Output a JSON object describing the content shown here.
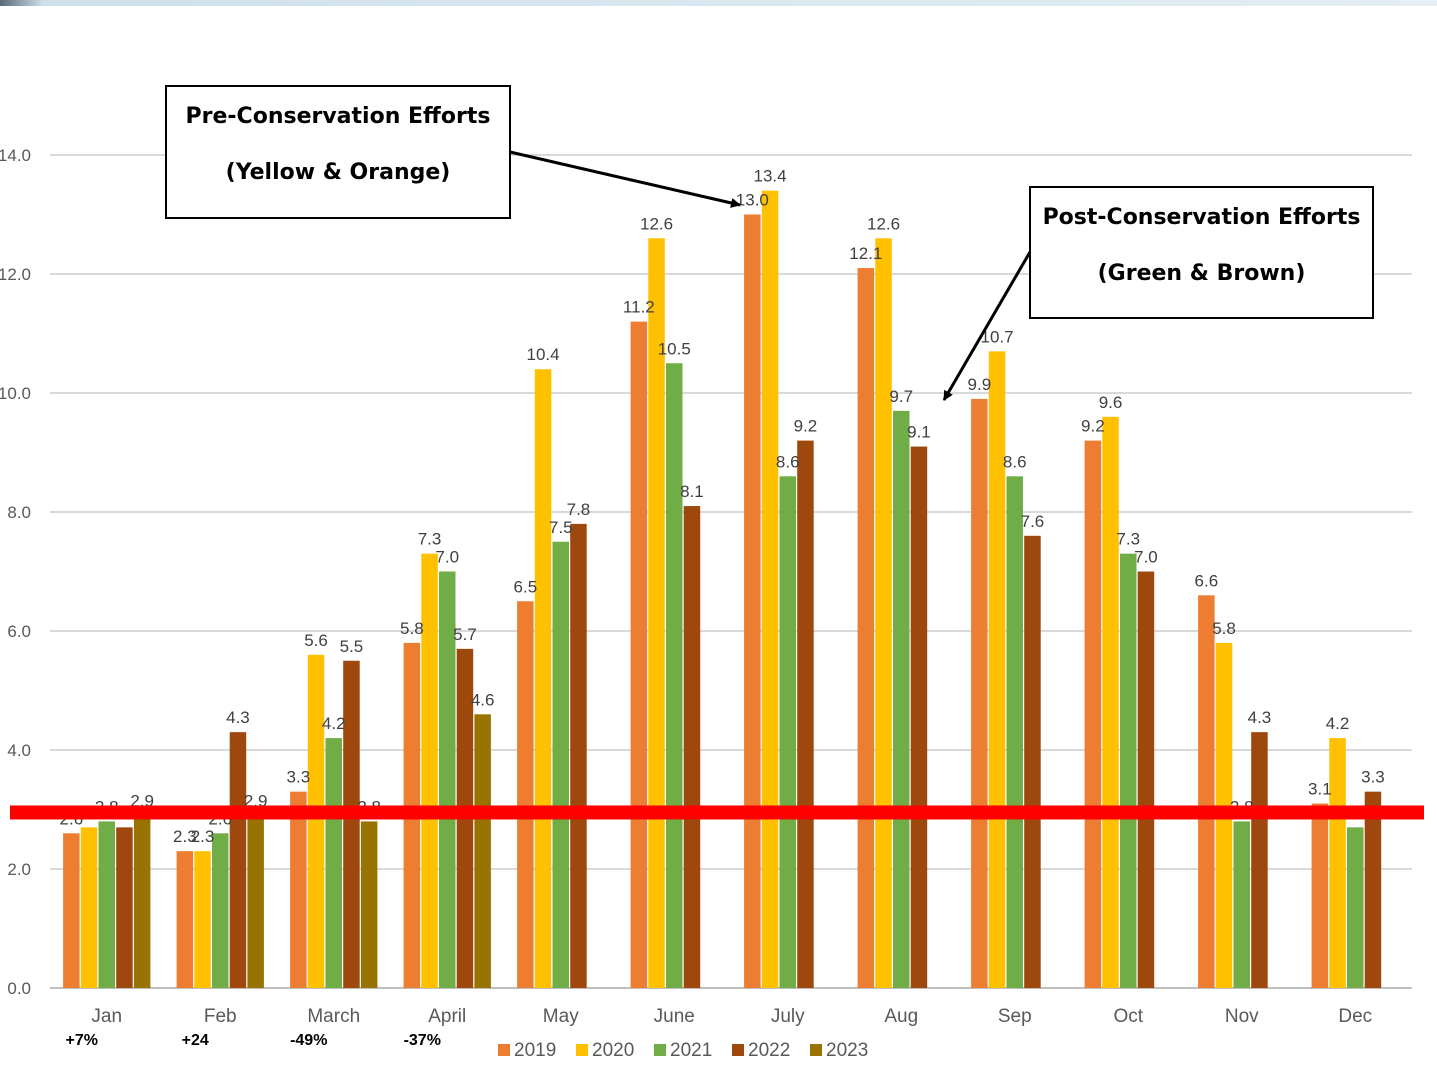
{
  "chart_data": {
    "type": "bar",
    "categories": [
      "Jan",
      "Feb",
      "March",
      "April",
      "May",
      "June",
      "July",
      "Aug",
      "Sep",
      "Oct",
      "Nov",
      "Dec"
    ],
    "series": [
      {
        "name": "2019",
        "color": "#ED7D31",
        "values": [
          2.6,
          2.3,
          3.3,
          5.8,
          6.5,
          11.2,
          13.0,
          12.1,
          9.9,
          9.2,
          6.6,
          3.1
        ]
      },
      {
        "name": "2020",
        "color": "#FFC000",
        "values": [
          2.7,
          2.3,
          5.6,
          7.3,
          10.4,
          12.6,
          13.4,
          12.6,
          10.7,
          9.6,
          5.8,
          4.2
        ]
      },
      {
        "name": "2021",
        "color": "#70AD47",
        "values": [
          2.8,
          2.6,
          4.2,
          7.0,
          7.5,
          10.5,
          8.6,
          9.7,
          8.6,
          7.3,
          2.8,
          2.7
        ]
      },
      {
        "name": "2022",
        "color": "#9E480E",
        "values": [
          2.7,
          4.3,
          5.5,
          5.7,
          7.8,
          8.1,
          9.2,
          9.1,
          7.6,
          7.0,
          4.3,
          3.3
        ]
      },
      {
        "name": "2023",
        "color": "#997300",
        "values": [
          2.9,
          2.9,
          2.8,
          4.6,
          null,
          null,
          null,
          null,
          null,
          null,
          null,
          null
        ]
      }
    ],
    "ylim": [
      0,
      14
    ],
    "yticks": [
      "0.0",
      "2.0",
      "4.0",
      "6.0",
      "8.0",
      "10.0",
      "12.0",
      "14.0"
    ],
    "grid": true,
    "legend": "bottom",
    "month_changes": [
      "+7%",
      "+24",
      "-49%",
      "-37%"
    ],
    "reference_line": {
      "y": 2.95,
      "color": "#FF0000"
    },
    "annotations": [
      {
        "lines": [
          "Pre-Conservation Efforts",
          "(Yellow & Orange)"
        ]
      },
      {
        "lines": [
          "Post-Conservation Efforts",
          "(Green & Brown)"
        ]
      }
    ]
  }
}
